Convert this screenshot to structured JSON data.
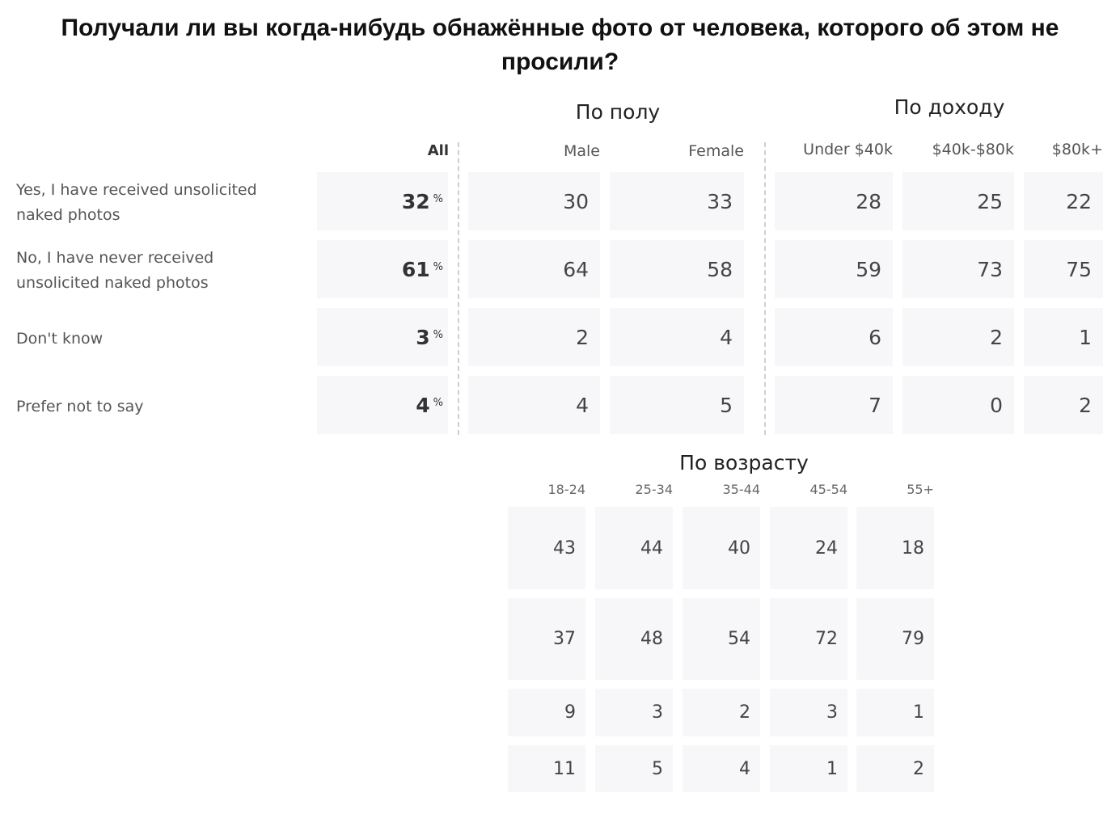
{
  "chart_data": {
    "type": "table",
    "title": "Получали ли вы когда-нибудь обнажённые фото от человека, которого об этом не просили?",
    "rows": [
      "Yes, I have received unsolicited naked photos",
      "No, I have never received unsolicited naked photos",
      "Don't know",
      "Prefer not to say"
    ],
    "all": {
      "label": "All",
      "unit": "%",
      "values": [
        "32",
        "61",
        "3",
        "4"
      ]
    },
    "groups": [
      {
        "title": "По полу",
        "columns": [
          {
            "name": "Male",
            "values": [
              "30",
              "64",
              "2",
              "4"
            ]
          },
          {
            "name": "Female",
            "values": [
              "33",
              "58",
              "4",
              "5"
            ]
          }
        ]
      },
      {
        "title": "По доходу",
        "columns": [
          {
            "name": "Under $40k",
            "values": [
              "28",
              "59",
              "6",
              "7"
            ]
          },
          {
            "name": "$40k-$80k",
            "values": [
              "25",
              "73",
              "2",
              "0"
            ]
          },
          {
            "name": "$80k+",
            "values": [
              "22",
              "75",
              "1",
              "2"
            ]
          }
        ]
      },
      {
        "title": "По возрасту",
        "columns": [
          {
            "name": "18-24",
            "values": [
              "43",
              "37",
              "9",
              "11"
            ]
          },
          {
            "name": "25-34",
            "values": [
              "44",
              "48",
              "3",
              "5"
            ]
          },
          {
            "name": "35-44",
            "values": [
              "40",
              "54",
              "2",
              "4"
            ]
          },
          {
            "name": "45-54",
            "values": [
              "24",
              "72",
              "3",
              "1"
            ]
          },
          {
            "name": "55+",
            "values": [
              "18",
              "79",
              "1",
              "2"
            ]
          }
        ]
      }
    ]
  }
}
